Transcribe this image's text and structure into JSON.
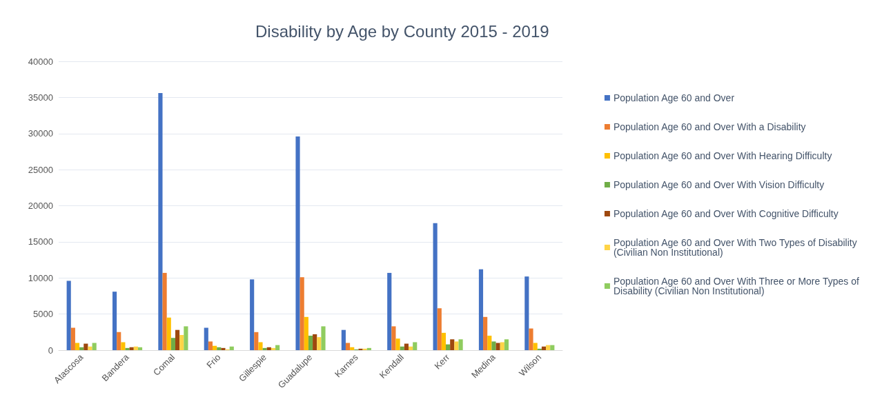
{
  "chart_data": {
    "type": "bar",
    "title": "Disability by Age by County 2015 - 2019",
    "categories": [
      "Atascosa",
      "Bandera",
      "Comal",
      "Frio",
      "Gillespie",
      "Guadalupe",
      "Karnes",
      "Kendall",
      "Kerr",
      "Medina",
      "Wilson"
    ],
    "series": [
      {
        "name": "Population Age 60 and Over",
        "color": "#4472c4",
        "values": [
          9600,
          8100,
          35600,
          3100,
          9800,
          29600,
          2800,
          10700,
          17600,
          11200,
          10200
        ]
      },
      {
        "name": "Population Age 60 and Over With a Disability",
        "color": "#ed7d31",
        "values": [
          3100,
          2500,
          10700,
          1200,
          2500,
          10100,
          1000,
          3300,
          5800,
          4600,
          3000
        ]
      },
      {
        "name": "Population Age 60 and Over With Hearing Difficulty",
        "color": "#ffc000",
        "values": [
          1000,
          1100,
          4500,
          600,
          1100,
          4600,
          400,
          1600,
          2400,
          2000,
          1000
        ]
      },
      {
        "name": "Population Age 60 and Over With Vision Difficulty",
        "color": "#70ad47",
        "values": [
          400,
          300,
          1700,
          400,
          300,
          2000,
          100,
          500,
          800,
          1200,
          200
        ]
      },
      {
        "name": "Population Age 60 and Over With Cognitive Difficulty",
        "color": "#9e480e",
        "values": [
          900,
          400,
          2800,
          300,
          400,
          2200,
          200,
          900,
          1500,
          1000,
          500
        ]
      },
      {
        "name": "Population Age 60 and Over With Two Types of Disability (Civilian Non Institutional)",
        "color": "#ffd447",
        "values": [
          500,
          500,
          2100,
          100,
          300,
          1800,
          200,
          500,
          1200,
          1100,
          700
        ]
      },
      {
        "name": "Population Age 60 and Over With Three or More Types of Disability (Civilian Non Institutional)",
        "color": "#8fcc5f",
        "values": [
          1000,
          400,
          3300,
          500,
          700,
          3300,
          300,
          1100,
          1500,
          1500,
          700
        ]
      }
    ],
    "ylim": [
      0,
      40000
    ],
    "yticks": [
      0,
      5000,
      10000,
      15000,
      20000,
      25000,
      30000,
      35000,
      40000
    ],
    "grid": "y",
    "legend": "right"
  }
}
